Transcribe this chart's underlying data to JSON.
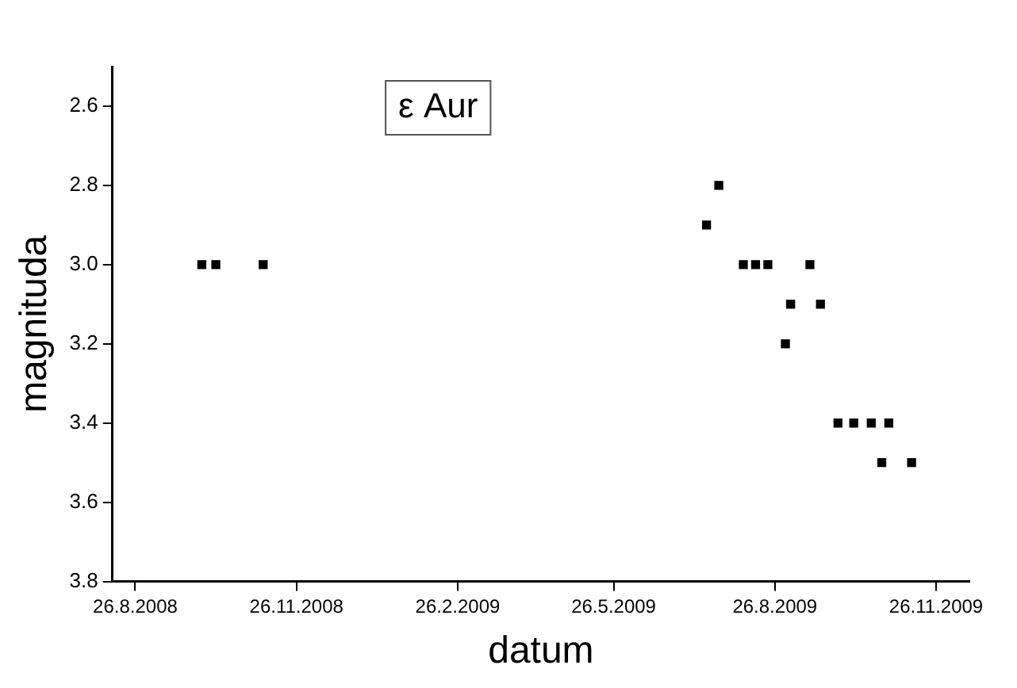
{
  "chart_data": {
    "type": "scatter",
    "title": "ε Aur",
    "xlabel": "datum",
    "ylabel": "magnituda",
    "x": [
      "2008-10-03",
      "2008-10-11",
      "2008-11-07",
      "2009-07-18",
      "2009-07-25",
      "2009-08-08",
      "2009-08-15",
      "2009-08-22",
      "2009-09-15",
      "2009-09-04",
      "2009-09-21",
      "2009-09-01",
      "2009-10-01",
      "2009-10-10",
      "2009-10-20",
      "2009-10-30",
      "2009-10-26",
      "2009-11-12"
    ],
    "values": [
      3.0,
      3.0,
      3.0,
      2.9,
      2.8,
      3.0,
      3.0,
      3.0,
      3.0,
      3.1,
      3.1,
      3.2,
      3.4,
      3.4,
      3.4,
      3.4,
      3.5,
      3.5
    ],
    "color": "#000000",
    "marker": "square",
    "grid": false,
    "legend": false,
    "xlim": [
      "2008-08-13",
      "2009-12-15"
    ],
    "xticks": [
      {
        "value": "2008-08-26",
        "label": "26.8.2008"
      },
      {
        "value": "2008-11-26",
        "label": "26.11.2008"
      },
      {
        "value": "2009-02-26",
        "label": "26.2.2009"
      },
      {
        "value": "2009-05-26",
        "label": "26.5.2009"
      },
      {
        "value": "2009-08-26",
        "label": "26.8.2009"
      },
      {
        "value": "2009-11-26",
        "label": "26.11.2009"
      }
    ],
    "ylim": [
      3.8,
      2.5
    ],
    "yticks": [
      2.6,
      2.8,
      {
        "value": 3,
        "label": "3.0"
      },
      3.2,
      3.4,
      3.6,
      3.8
    ]
  }
}
